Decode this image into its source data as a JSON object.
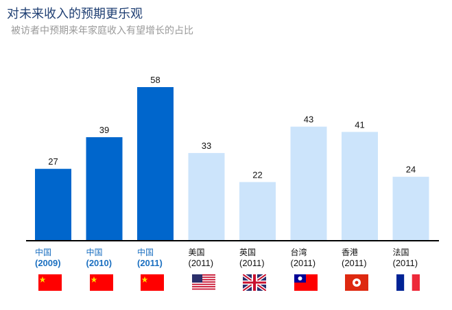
{
  "header": {
    "title": "对未来收入的预期更乐观",
    "subtitle": "被访者中预期来年家庭收入有望增长的占比"
  },
  "chart_data": {
    "type": "bar",
    "title": "对未来收入的预期更乐观",
    "subtitle": "被访者中预期来年家庭收入有望增长的占比",
    "xlabel": "",
    "ylabel": "",
    "ylim": [
      0,
      60
    ],
    "grid": false,
    "legend": "none",
    "categories": [
      {
        "name": "中国",
        "year": "(2009)",
        "highlight": true,
        "flag": "china-flag"
      },
      {
        "name": "中国",
        "year": "(2010)",
        "highlight": true,
        "flag": "china-flag"
      },
      {
        "name": "中国",
        "year": "(2011)",
        "highlight": true,
        "flag": "china-flag"
      },
      {
        "name": "美国",
        "year": "(2011)",
        "highlight": false,
        "flag": "usa-flag"
      },
      {
        "name": "英国",
        "year": "(2011)",
        "highlight": false,
        "flag": "uk-flag"
      },
      {
        "name": "台湾",
        "year": "(2011)",
        "highlight": false,
        "flag": "taiwan-flag"
      },
      {
        "name": "香港",
        "year": "(2011)",
        "highlight": false,
        "flag": "hongkong-flag"
      },
      {
        "name": "法国",
        "year": "(2011)",
        "highlight": false,
        "flag": "france-flag"
      }
    ],
    "values": [
      27,
      39,
      58,
      33,
      22,
      43,
      41,
      24
    ],
    "value_labels": [
      "27",
      "39",
      "58",
      "33",
      "22",
      "43",
      "41",
      "24"
    ],
    "colors": {
      "highlight": "#0066cc",
      "normal": "#cce4fb",
      "axis": "#000000"
    }
  }
}
